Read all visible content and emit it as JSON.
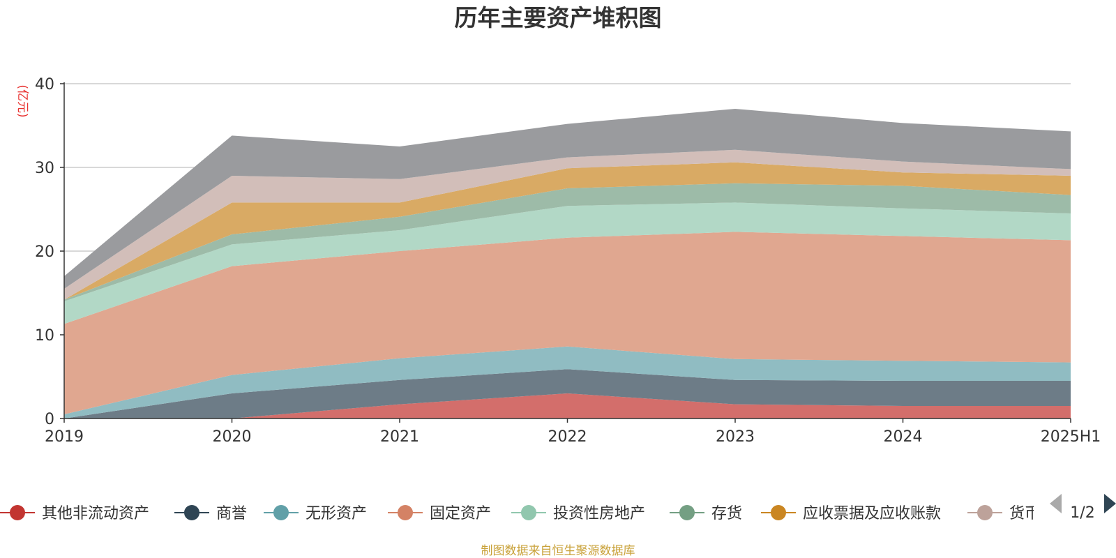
{
  "chart_data": {
    "type": "area",
    "stacked": true,
    "title": "历年主要资产堆积图",
    "unit_label": "(亿元)",
    "x": [
      "2019",
      "2020",
      "2021",
      "2022",
      "2023",
      "2024",
      "2025H1"
    ],
    "ylim": [
      0,
      40
    ],
    "yticks": [
      0,
      10,
      20,
      30,
      40
    ],
    "grid": true,
    "series": [
      {
        "name": "其他非流动资产",
        "color": "#c23531",
        "area_color": "#d36e6b",
        "values": [
          0,
          0,
          1.7,
          3.0,
          1.7,
          1.5,
          1.5
        ]
      },
      {
        "name": "商誉",
        "color": "#2f4554",
        "area_color": "#6d7c87",
        "values": [
          0,
          3.0,
          2.9,
          2.9,
          2.9,
          3.0,
          3.0
        ]
      },
      {
        "name": "无形资产",
        "color": "#61a0a8",
        "area_color": "#90bcc2",
        "values": [
          0.5,
          2.2,
          2.6,
          2.7,
          2.5,
          2.4,
          2.2
        ]
      },
      {
        "name": "固定资产",
        "color": "#d48265",
        "area_color": "#e0a790",
        "values": [
          10.8,
          13.0,
          12.8,
          13.0,
          15.2,
          14.9,
          14.6
        ]
      },
      {
        "name": "投资性房地产",
        "color": "#91c7ae",
        "area_color": "#b2d8c6",
        "values": [
          2.7,
          2.6,
          2.5,
          3.8,
          3.5,
          3.3,
          3.2
        ]
      },
      {
        "name": "存货",
        "color": "#749f83",
        "area_color": "#9dbba8",
        "values": [
          0.2,
          1.2,
          1.6,
          2.1,
          2.3,
          2.7,
          2.2
        ]
      },
      {
        "name": "应收票据及应收账款",
        "color": "#ca8622",
        "area_color": "#d9aa64",
        "values": [
          0,
          3.8,
          1.7,
          2.4,
          2.5,
          1.6,
          2.3
        ]
      },
      {
        "name": "货币资金",
        "color": "#bda29a",
        "area_color": "#d2beb9",
        "values": [
          1.3,
          3.2,
          2.8,
          1.3,
          1.5,
          1.3,
          0.8
        ]
      },
      {
        "name": "",
        "color": "#6e7074",
        "area_color": "#9a9b9e",
        "values": [
          1.5,
          4.8,
          3.9,
          4.0,
          4.9,
          4.6,
          4.5
        ]
      }
    ],
    "legend": {
      "position": "bottom",
      "visible_items": [
        "其他非流动资产",
        "商誉",
        "无形资产",
        "固定资产",
        "投资性房地产",
        "存货",
        "应收票据及应收账款",
        "货币资金"
      ],
      "page": "1/2"
    }
  },
  "source_text": "制图数据来自恒生聚源数据库"
}
